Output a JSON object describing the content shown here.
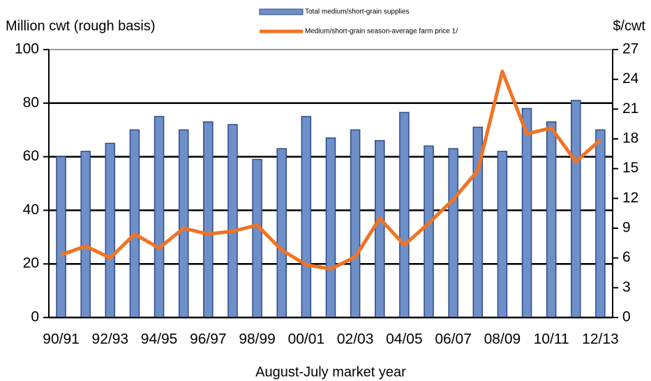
{
  "chart_data": {
    "type": "bar",
    "y_label": "Million cwt (rough basis)",
    "y2_label": "$/cwt",
    "x_label": "August-July market year",
    "categories": [
      "90/91",
      null,
      "92/93",
      null,
      "94/95",
      null,
      "96/97",
      null,
      "98/99",
      null,
      "00/01",
      null,
      "02/03",
      null,
      "04/05",
      null,
      "06/07",
      null,
      "08/09",
      null,
      "10/11",
      null,
      "12/13"
    ],
    "series": [
      {
        "name": "Total medium/short-grain supplies",
        "type": "bar",
        "color": "#6f8fc8",
        "values": [
          60,
          62,
          65,
          70,
          75,
          70,
          73,
          72,
          59,
          63,
          75,
          67,
          70,
          66,
          76.5,
          64,
          63,
          71,
          62,
          78,
          73,
          81,
          70
        ]
      },
      {
        "name": "Medium/short-grain season-average farm price 1/",
        "type": "line",
        "axis": "y2",
        "color": "#f27322",
        "values": [
          6.3,
          7.2,
          6.0,
          8.4,
          7.0,
          9.0,
          8.4,
          8.7,
          9.3,
          6.8,
          5.3,
          4.9,
          6.1,
          10.0,
          7.3,
          9.5,
          11.9,
          14.8,
          24.8,
          18.5,
          19.1,
          15.7,
          17.9
        ]
      }
    ],
    "ylim": [
      0,
      100
    ],
    "yticks": [
      0,
      20,
      40,
      60,
      80,
      100
    ],
    "y2lim": [
      0,
      27
    ],
    "y2ticks": [
      0,
      3,
      6,
      9,
      12,
      15,
      18,
      21,
      24,
      27
    ],
    "grid": true
  }
}
